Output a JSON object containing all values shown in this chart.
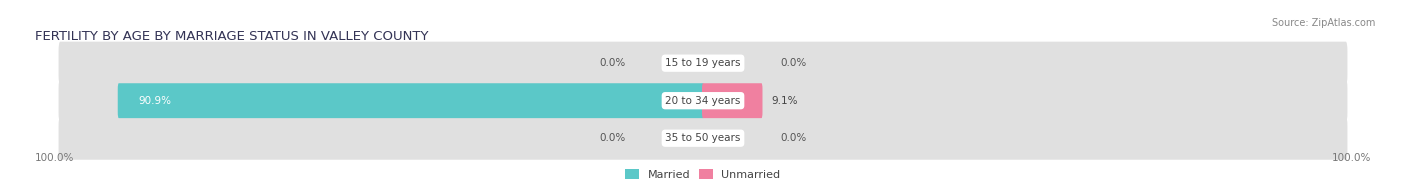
{
  "title": "FERTILITY BY AGE BY MARRIAGE STATUS IN VALLEY COUNTY",
  "source": "Source: ZipAtlas.com",
  "categories": [
    "15 to 19 years",
    "20 to 34 years",
    "35 to 50 years"
  ],
  "married_values": [
    0.0,
    90.9,
    0.0
  ],
  "unmarried_values": [
    0.0,
    9.1,
    0.0
  ],
  "married_color": "#5bc8c8",
  "unmarried_color": "#f080a0",
  "bar_bg_color": "#e0e0e0",
  "left_label": "100.0%",
  "right_label": "100.0%",
  "title_fontsize": 9.5,
  "label_fontsize": 7.5,
  "value_fontsize": 7.5,
  "legend_fontsize": 8,
  "source_fontsize": 7
}
